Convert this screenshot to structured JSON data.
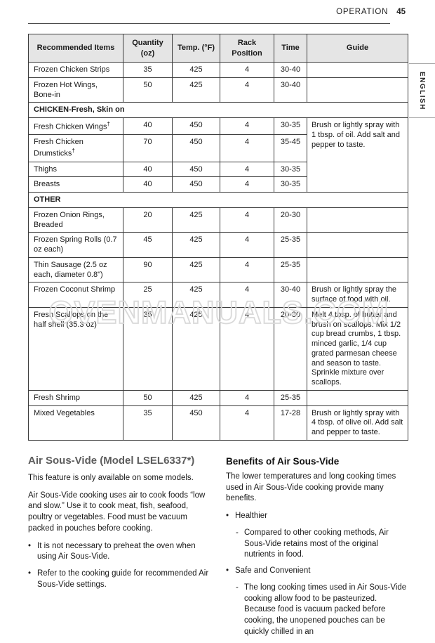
{
  "header": {
    "section": "OPERATION",
    "page_number": "45"
  },
  "language_tab": "ENGLISH",
  "watermark": "OVENMANUALS.COM",
  "table": {
    "headers": [
      "Recommended Items",
      "Quantity (oz)",
      "Temp. (°F)",
      "Rack Position",
      "Time",
      "Guide"
    ],
    "rows": [
      {
        "item": "Frozen Chicken Strips",
        "qty": "35",
        "temp": "425",
        "rack": "4",
        "time": "30-40",
        "guide": ""
      },
      {
        "item": "Frozen Hot Wings, Bone-in",
        "qty": "50",
        "temp": "425",
        "rack": "4",
        "time": "30-40",
        "guide": ""
      },
      {
        "section": "CHICKEN-Fresh, Skin on"
      },
      {
        "item": "Fresh Chicken Wings",
        "sup": "†",
        "qty": "40",
        "temp": "450",
        "rack": "4",
        "time": "30-35",
        "guide": "Brush or lightly spray with 1 tbsp. of oil. Add salt and pepper to taste.",
        "guide_rowspan": 4
      },
      {
        "item": "Fresh Chicken Drumsticks",
        "sup": "†",
        "qty": "70",
        "temp": "450",
        "rack": "4",
        "time": "35-45",
        "skip_guide": true
      },
      {
        "item": "Thighs",
        "qty": "40",
        "temp": "450",
        "rack": "4",
        "time": "30-35",
        "skip_guide": true
      },
      {
        "item": "Breasts",
        "qty": "40",
        "temp": "450",
        "rack": "4",
        "time": "30-35",
        "skip_guide": true
      },
      {
        "section": "OTHER"
      },
      {
        "item": "Frozen Onion Rings, Breaded",
        "qty": "20",
        "temp": "425",
        "rack": "4",
        "time": "20-30",
        "guide": ""
      },
      {
        "item": "Frozen Spring Rolls (0.7 oz each)",
        "qty": "45",
        "temp": "425",
        "rack": "4",
        "time": "25-35",
        "guide": ""
      },
      {
        "item": "Thin Sausage (2.5 oz each, diameter 0.8\")",
        "qty": "90",
        "temp": "425",
        "rack": "4",
        "time": "25-35",
        "guide": ""
      },
      {
        "item": "Frozen Coconut Shrimp",
        "qty": "25",
        "temp": "425",
        "rack": "4",
        "time": "30-40",
        "guide": "Brush or lightly spray the surface of food with oil."
      },
      {
        "item": "Fresh Scallops on the half shell (35.3 oz)",
        "qty": "35",
        "temp": "425",
        "rack": "4",
        "time": "20-30",
        "guide": "Melt 4 tbsp. of butter and brush on scallops. Mix 1/2 cup bread crumbs, 1 tbsp. minced garlic, 1/4 cup grated parmesan cheese and season to taste. Sprinkle mixture over scallops."
      },
      {
        "item": "Fresh Shrimp",
        "qty": "50",
        "temp": "425",
        "rack": "4",
        "time": "25-35",
        "guide": ""
      },
      {
        "item": "Mixed Vegetables",
        "qty": "35",
        "temp": "450",
        "rack": "4",
        "time": "17-28",
        "guide": "Brush or lightly spray with 4 tbsp. of olive oil. Add salt and pepper to taste."
      }
    ]
  },
  "sections": {
    "left": {
      "heading": "Air Sous-Vide (Model LSEL6337*)",
      "p1": "This feature is only available on some models.",
      "p2": "Air Sous-Vide cooking uses air to cook foods “low and slow.” Use it to cook meat, fish, seafood, poultry or vegetables. Food must be vacuum packed in pouches before cooking.",
      "bullets": [
        "It is not necessary to preheat the oven when using Air Sous-Vide.",
        "Refer to the cooking guide for recommended Air Sous-Vide settings."
      ]
    },
    "right": {
      "heading": "Benefits of Air Sous-Vide",
      "p1": "The lower temperatures and long cooking times used in Air Sous-Vide cooking provide many benefits.",
      "items": [
        {
          "label": "Healthier",
          "sub": [
            "Compared to other cooking methods, Air Sous-Vide retains most of the original nutrients in food."
          ]
        },
        {
          "label": "Safe and Convenient",
          "sub": [
            "The long cooking times used in Air Sous-Vide cooking allow food to be pasteurized. Because food is vacuum packed before cooking, the unopened pouches can be quickly chilled in an"
          ]
        }
      ]
    }
  },
  "markers": {
    "bullet": "•",
    "dash": "-"
  }
}
